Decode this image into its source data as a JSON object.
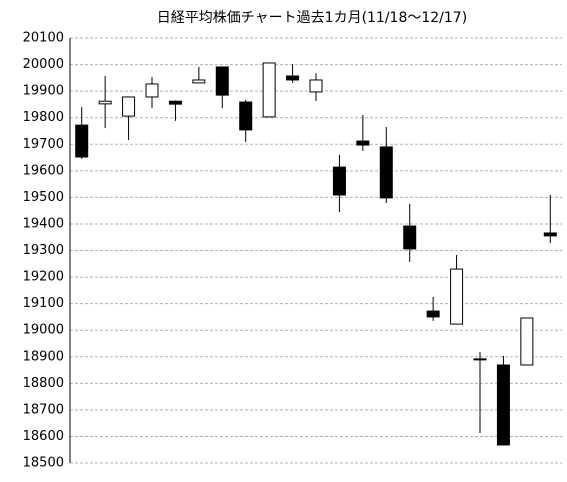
{
  "chart_data": {
    "type": "candlestick",
    "title": "日経平均株価チャート過去1カ月(11/18～12/17)",
    "categories": [
      null,
      null,
      null,
      null,
      null,
      null,
      null,
      null,
      null,
      null,
      null,
      null,
      null,
      null,
      null,
      null,
      null,
      null,
      null,
      null,
      null
    ],
    "open": [
      19772,
      19852,
      19806,
      19878,
      19862,
      19931,
      19991,
      19859,
      19803,
      19957,
      19897,
      19614,
      19712,
      19690,
      19392,
      19072,
      19023,
      18892,
      18869,
      18869,
      19366
    ],
    "high": [
      19840,
      19957,
      19880,
      19953,
      19865,
      19991,
      19991,
      19867,
      20006,
      20002,
      19968,
      19660,
      19810,
      19765,
      19475,
      19125,
      19283,
      18918,
      18903,
      19046,
      19509
    ],
    "low": [
      19645,
      19761,
      19716,
      19836,
      19788,
      19931,
      19836,
      19708,
      19803,
      19931,
      19863,
      19445,
      19675,
      19479,
      19257,
      19035,
      19023,
      18613,
      18568,
      18869,
      19328
    ],
    "close": [
      19652,
      19862,
      19878,
      19927,
      19851,
      19942,
      19885,
      19754,
      20006,
      19942,
      19942,
      19509,
      19697,
      19498,
      19306,
      19050,
      19230,
      18890,
      18568,
      19046,
      19355
    ],
    "up_color": "#ffffff",
    "down_color": "#000000",
    "ylim": [
      18500,
      20100
    ],
    "yticks": [
      18500,
      18600,
      18700,
      18800,
      18900,
      19000,
      19100,
      19200,
      19300,
      19400,
      19500,
      19600,
      19700,
      19800,
      19900,
      20000,
      20100
    ],
    "grid": true
  }
}
